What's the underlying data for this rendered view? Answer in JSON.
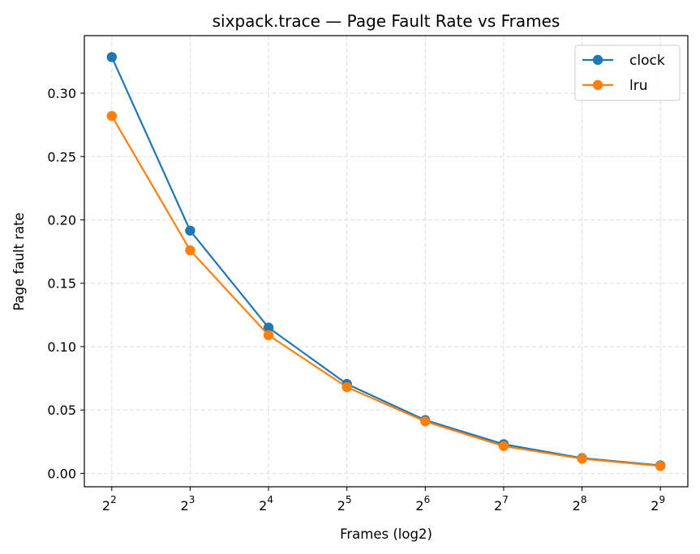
{
  "chart_data": {
    "type": "line",
    "title": "sixpack.trace — Page Fault Rate vs Frames",
    "xlabel": "Frames (log2)",
    "ylabel": "Page fault rate",
    "x_scale": "log2",
    "x": [
      4,
      8,
      16,
      32,
      64,
      128,
      256,
      512
    ],
    "x_tick_labels": [
      {
        "base": "2",
        "exp": "2"
      },
      {
        "base": "2",
        "exp": "3"
      },
      {
        "base": "2",
        "exp": "4"
      },
      {
        "base": "2",
        "exp": "5"
      },
      {
        "base": "2",
        "exp": "6"
      },
      {
        "base": "2",
        "exp": "7"
      },
      {
        "base": "2",
        "exp": "8"
      },
      {
        "base": "2",
        "exp": "9"
      }
    ],
    "y_ticks": [
      "0.00",
      "0.05",
      "0.10",
      "0.15",
      "0.20",
      "0.25",
      "0.30"
    ],
    "ylim": [
      -0.0106,
      0.3454
    ],
    "grid": true,
    "legend_position": "top-right",
    "series": [
      {
        "name": "clock",
        "color": "#1f77b4",
        "values": [
          0.3285,
          0.1915,
          0.115,
          0.0705,
          0.042,
          0.023,
          0.012,
          0.0063
        ]
      },
      {
        "name": "lru",
        "color": "#ff7f0e",
        "values": [
          0.282,
          0.176,
          0.109,
          0.068,
          0.041,
          0.0215,
          0.0115,
          0.0058
        ]
      }
    ]
  }
}
